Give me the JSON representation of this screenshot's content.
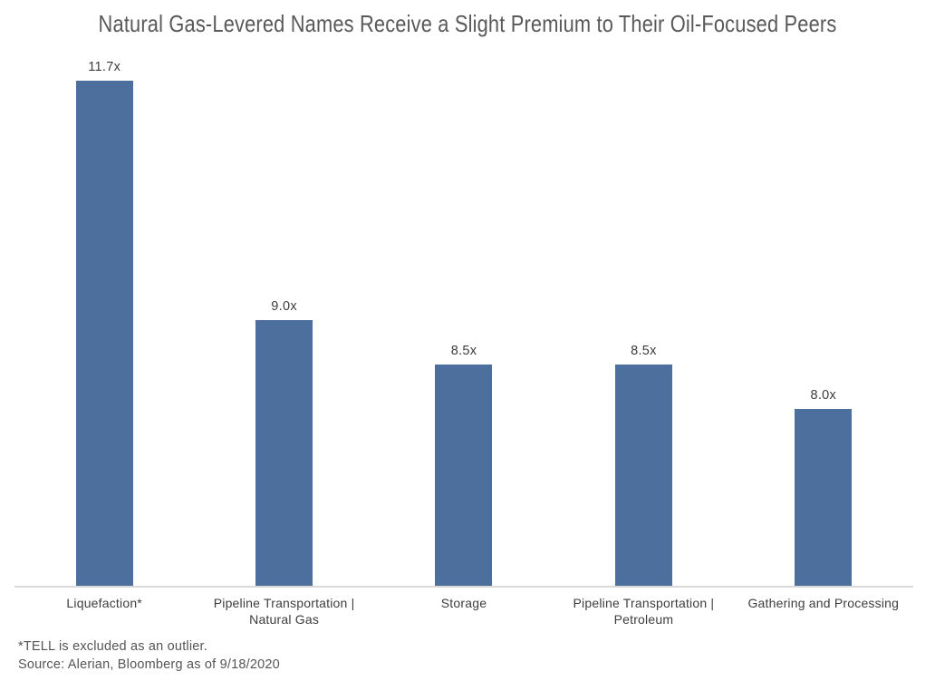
{
  "colors": {
    "bar": "#4C6F9D",
    "axis_line": "#D9D9D9",
    "title_text": "#595959",
    "label_text": "#3D3D3D",
    "footnote_text": "#555555",
    "background": "#FFFFFF"
  },
  "chart_data": {
    "type": "bar",
    "title": "Natural Gas-Levered Names Receive a Slight Premium to Their Oil-Focused Peers",
    "categories": [
      "Liquefaction*",
      "Pipeline Transportation |\nNatural Gas",
      "Storage",
      "Pipeline Transportation |\nPetroleum",
      "Gathering and Processing"
    ],
    "values": [
      11.7,
      9.0,
      8.5,
      8.5,
      8.0
    ],
    "value_labels": [
      "11.7x",
      "9.0x",
      "8.5x",
      "8.5x",
      "8.0x"
    ],
    "xlabel": "",
    "ylabel": "",
    "ylim": [
      6,
      12
    ],
    "y_axis_visible": false,
    "grid": false,
    "legend": "none",
    "bar_color": "#4C6F9D",
    "annotations": [
      "*TELL is excluded as an outlier.",
      "Source: Alerian, Bloomberg as of 9/18/2020"
    ]
  }
}
